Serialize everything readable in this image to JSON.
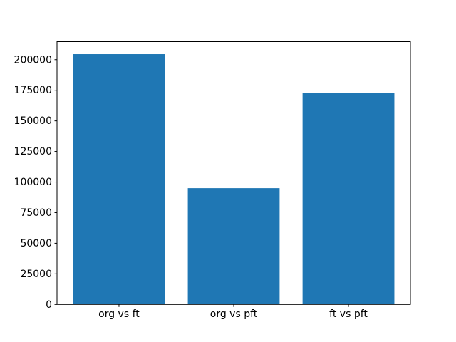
{
  "chart_data": {
    "type": "bar",
    "categories": [
      "org vs ft",
      "org vs pft",
      "ft vs pft"
    ],
    "values": [
      204500,
      95000,
      172700
    ],
    "title": "",
    "xlabel": "",
    "ylabel": "",
    "ylim": [
      0,
      214700
    ],
    "yticks": [
      0,
      25000,
      50000,
      75000,
      100000,
      125000,
      150000,
      175000,
      200000
    ],
    "bar_color": "#1f77b4",
    "axis_color": "#000000",
    "background_color": "#ffffff",
    "grid": false,
    "legend_position": "none",
    "bar_width_fraction": 0.8
  }
}
